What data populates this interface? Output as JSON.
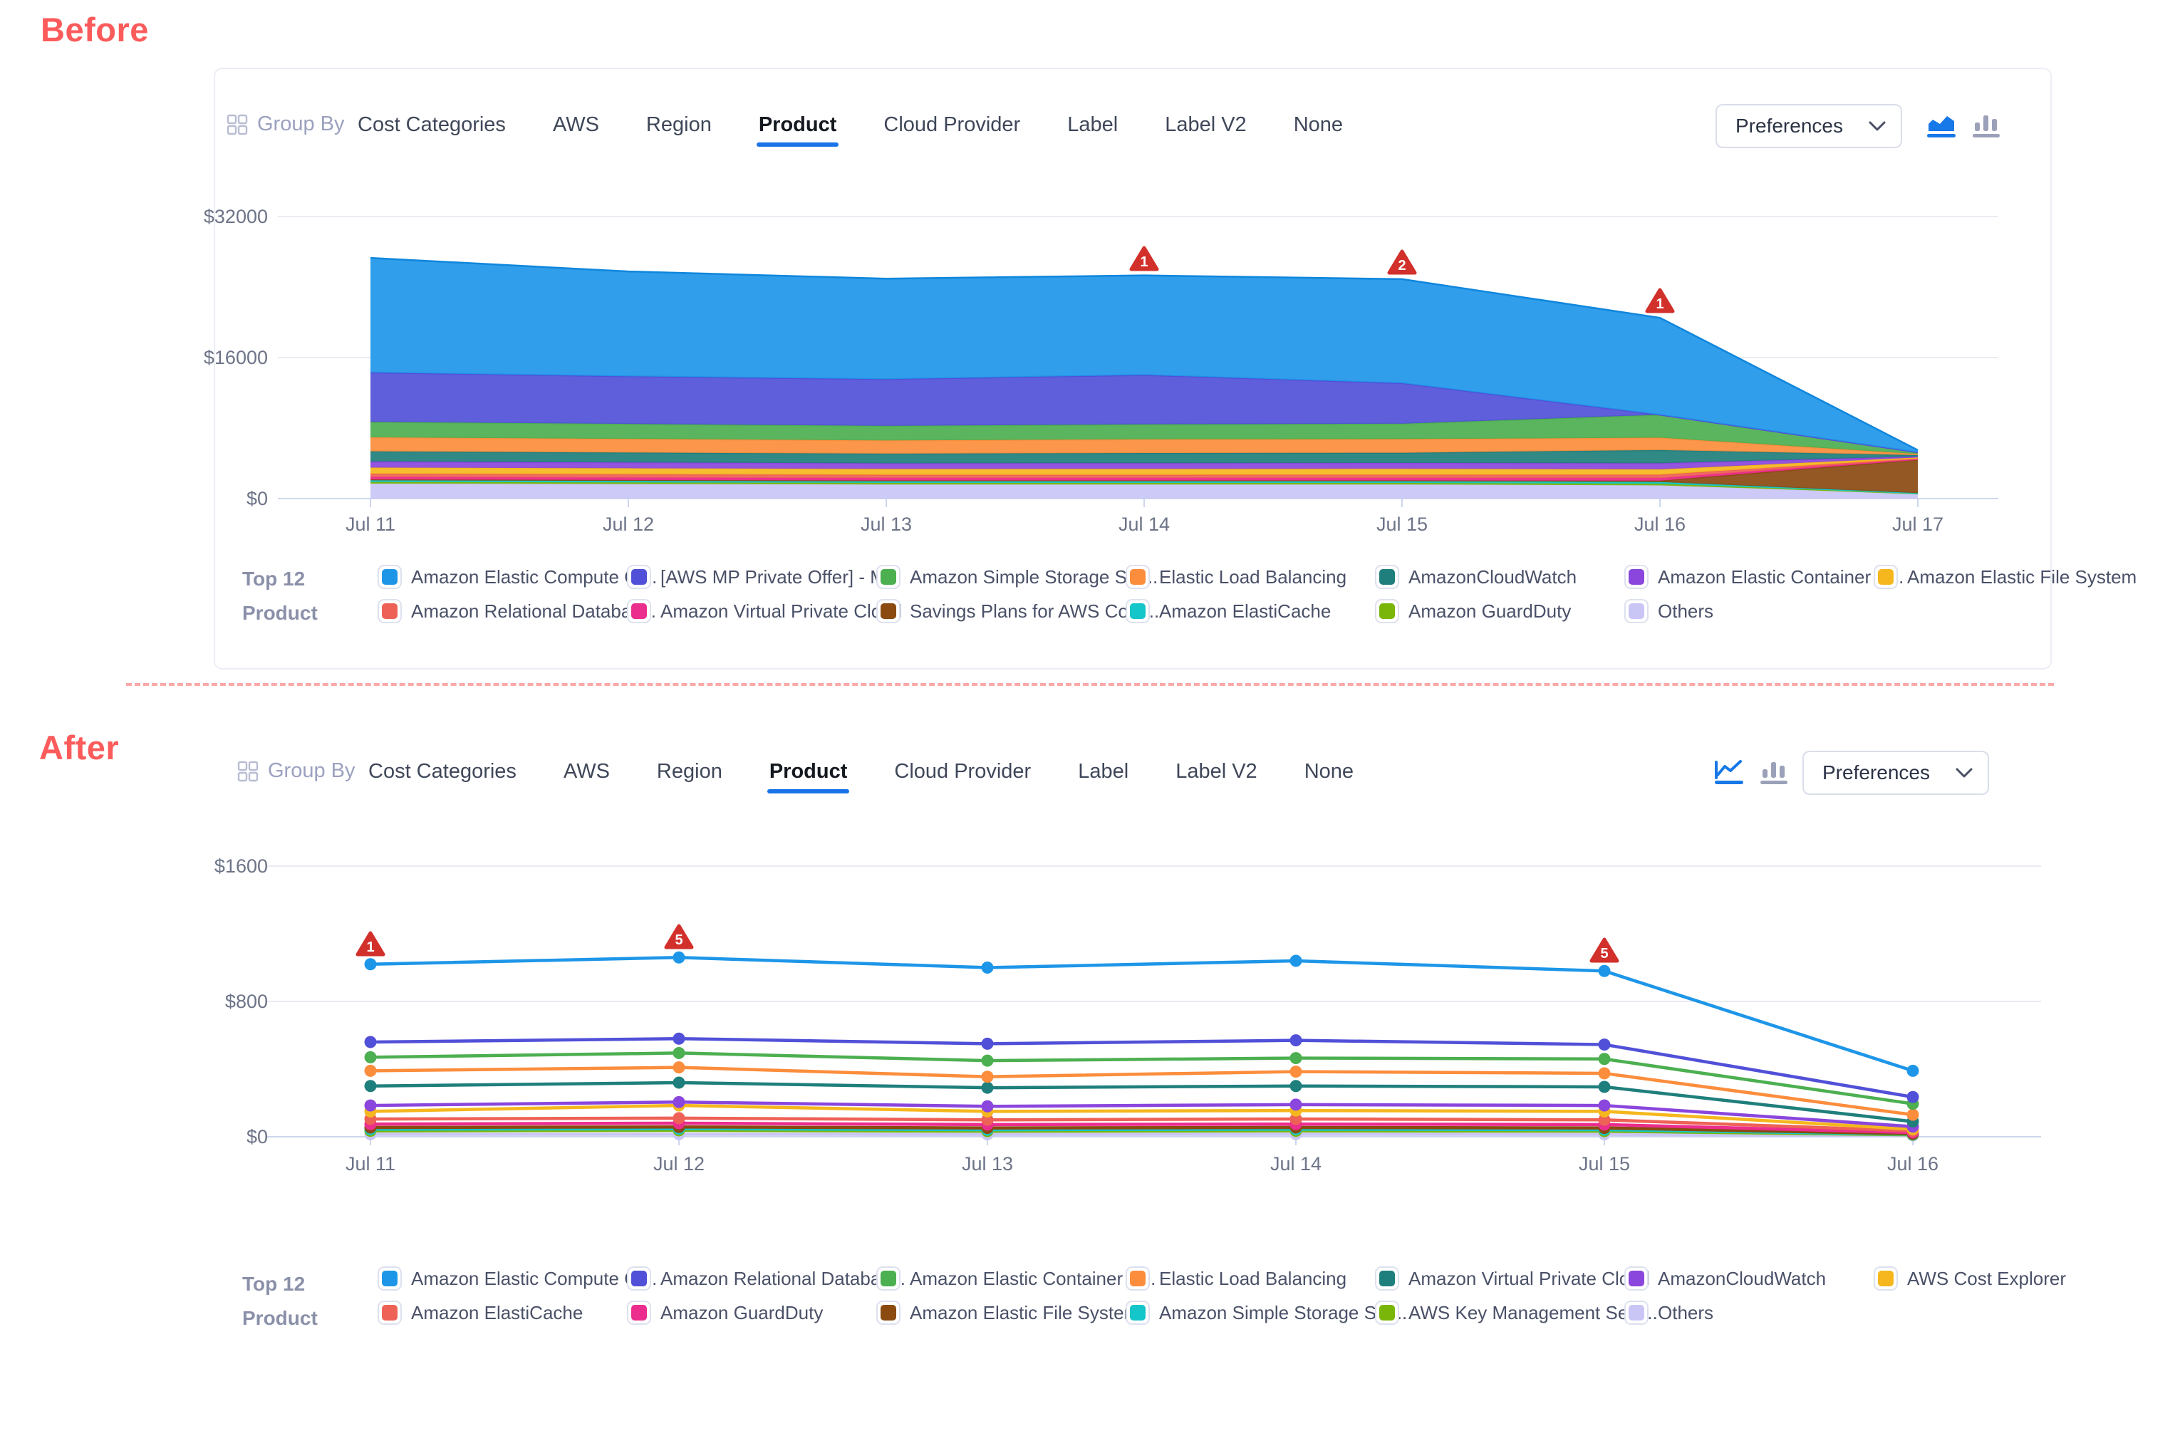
{
  "page": {
    "before_label": "Before",
    "after_label": "After"
  },
  "toolbar": {
    "group_by": "Group By",
    "tabs": [
      "Cost Categories",
      "AWS",
      "Region",
      "Product",
      "Cloud Provider",
      "Label",
      "Label V2",
      "None"
    ],
    "active_tab": "Product",
    "preferences": "Preferences"
  },
  "legend_title": {
    "line1": "Top 12",
    "line2": "Product"
  },
  "colors": {
    "accent_blue": "#1a73e8",
    "alert_red": "#d2302b",
    "divider_pink": "#f9a9a9",
    "section_label": "#fb5b5b",
    "icon_gray": "#9aa1b8",
    "icon_active_blue": "#1778e8"
  },
  "chart_data": [
    {
      "id": "before",
      "type": "area",
      "stacked": true,
      "x": [
        "Jul 11",
        "Jul 12",
        "Jul 13",
        "Jul 14",
        "Jul 15",
        "Jul 16",
        "Jul 17"
      ],
      "ylim": [
        0,
        32000
      ],
      "yticks": [
        {
          "value": 0,
          "label": "$0"
        },
        {
          "value": 16000,
          "label": "$16000"
        },
        {
          "value": 32000,
          "label": "$32000"
        }
      ],
      "grid": "horizontal",
      "legend_position": "bottom",
      "series": [
        {
          "name": "Others",
          "color": "#c9c6f6",
          "values": [
            1700,
            1650,
            1600,
            1600,
            1600,
            1500,
            550
          ]
        },
        {
          "name": "Amazon GuardDuty",
          "color": "#7ab60a",
          "values": [
            180,
            180,
            180,
            180,
            180,
            180,
            30
          ]
        },
        {
          "name": "Amazon ElastiCache",
          "color": "#14c5c9",
          "values": [
            230,
            225,
            220,
            220,
            220,
            200,
            40
          ]
        },
        {
          "name": "Savings Plans for AWS Com...",
          "color": "#8a4a10",
          "values": [
            60,
            60,
            60,
            60,
            60,
            150,
            3800
          ]
        },
        {
          "name": "Amazon Virtual Private Cloud",
          "color": "#eb2d8d",
          "values": [
            260,
            260,
            260,
            260,
            260,
            280,
            60
          ]
        },
        {
          "name": "Amazon Relational Databas...",
          "color": "#ee6156",
          "values": [
            390,
            385,
            380,
            380,
            385,
            400,
            80
          ]
        },
        {
          "name": "Amazon Elastic File System",
          "color": "#f5b71d",
          "values": [
            700,
            680,
            660,
            660,
            680,
            600,
            100
          ]
        },
        {
          "name": "Amazon Elastic Container S...",
          "color": "#8a46dd",
          "values": [
            680,
            660,
            640,
            660,
            660,
            700,
            120
          ]
        },
        {
          "name": "AmazonCloudWatch",
          "color": "#1f7f7c",
          "values": [
            1150,
            1120,
            1100,
            1150,
            1150,
            1500,
            150
          ]
        },
        {
          "name": "Elastic Load Balancing",
          "color": "#fb8d3c",
          "values": [
            1600,
            1550,
            1500,
            1550,
            1550,
            1400,
            120
          ]
        },
        {
          "name": "Amazon Simple Storage Ser...",
          "color": "#4caf50",
          "values": [
            1750,
            1700,
            1650,
            1700,
            1750,
            2600,
            200
          ]
        },
        {
          "name": "[AWS MP Private Offer] - M...",
          "color": "#5150d8",
          "values": [
            5600,
            5400,
            5300,
            5600,
            4600,
            0,
            0
          ]
        },
        {
          "name": "Amazon Elastic Compute Cl...",
          "color": "#1e96e8",
          "values": [
            13000,
            11900,
            11400,
            11300,
            11800,
            11000,
            250
          ],
          "edge": "#0f86dd"
        }
      ],
      "alerts": [
        {
          "x": "Jul 14",
          "count": "1"
        },
        {
          "x": "Jul 15",
          "count": "2"
        },
        {
          "x": "Jul 16",
          "count": "1"
        }
      ],
      "legend_rows": [
        [
          {
            "label": "Amazon Elastic Compute Cl...",
            "color": "#1e96e8"
          },
          {
            "label": "[AWS MP Private Offer] - M...",
            "color": "#5150d8"
          },
          {
            "label": "Amazon Simple Storage Ser...",
            "color": "#4caf50"
          },
          {
            "label": "Elastic Load Balancing",
            "color": "#fb8d3c"
          },
          {
            "label": "AmazonCloudWatch",
            "color": "#1f7f7c"
          },
          {
            "label": "Amazon Elastic Container S...",
            "color": "#8a46dd"
          },
          {
            "label": "Amazon Elastic File System",
            "color": "#f5b71d"
          }
        ],
        [
          {
            "label": "Amazon Relational Databas...",
            "color": "#ee6156"
          },
          {
            "label": "Amazon Virtual Private Cloud",
            "color": "#eb2d8d"
          },
          {
            "label": "Savings Plans for AWS Com...",
            "color": "#8a4a10"
          },
          {
            "label": "Amazon ElastiCache",
            "color": "#14c5c9"
          },
          {
            "label": "Amazon GuardDuty",
            "color": "#7ab60a"
          },
          {
            "label": "Others",
            "color": "#c9c6f6"
          }
        ]
      ]
    },
    {
      "id": "after",
      "type": "line",
      "stacked": false,
      "x": [
        "Jul 11",
        "Jul 12",
        "Jul 13",
        "Jul 14",
        "Jul 15",
        "Jul 16"
      ],
      "ylim": [
        0,
        1600
      ],
      "yticks": [
        {
          "value": 0,
          "label": "$0"
        },
        {
          "value": 800,
          "label": "$800"
        },
        {
          "value": 1600,
          "label": "$1600"
        }
      ],
      "grid": "horizontal",
      "legend_position": "bottom",
      "series": [
        {
          "name": "Others",
          "color": "#c9c6f6",
          "values": [
            15,
            15,
            14,
            15,
            14,
            8
          ]
        },
        {
          "name": "AWS Key Management Serv...",
          "color": "#7ab60a",
          "values": [
            35,
            38,
            33,
            35,
            33,
            12
          ]
        },
        {
          "name": "Amazon Simple Storage Ser...",
          "color": "#14c5c9",
          "values": [
            45,
            48,
            42,
            45,
            42,
            15
          ]
        },
        {
          "name": "Amazon Elastic File System",
          "color": "#8a4a10",
          "values": [
            55,
            58,
            52,
            55,
            52,
            18
          ]
        },
        {
          "name": "Amazon GuardDuty",
          "color": "#eb2d8d",
          "values": [
            75,
            80,
            72,
            75,
            72,
            25
          ]
        },
        {
          "name": "Amazon ElastiCache",
          "color": "#ee6156",
          "values": [
            105,
            110,
            100,
            105,
            100,
            35
          ]
        },
        {
          "name": "AWS Cost Explorer",
          "color": "#f5b71d",
          "values": [
            150,
            185,
            150,
            155,
            150,
            45
          ]
        },
        {
          "name": "AmazonCloudWatch",
          "color": "#8a46dd",
          "values": [
            185,
            205,
            180,
            190,
            185,
            60
          ]
        },
        {
          "name": "Amazon Virtual Private Cloud",
          "color": "#1f7f7c",
          "values": [
            300,
            320,
            290,
            300,
            295,
            90
          ]
        },
        {
          "name": "Elastic Load Balancing",
          "color": "#fb8d3c",
          "values": [
            390,
            410,
            355,
            385,
            375,
            130
          ]
        },
        {
          "name": "Amazon Elastic Container S...",
          "color": "#4caf50",
          "values": [
            470,
            495,
            450,
            465,
            460,
            195
          ]
        },
        {
          "name": "Amazon Relational Databas...",
          "color": "#5150d8",
          "values": [
            560,
            580,
            550,
            570,
            545,
            235
          ]
        },
        {
          "name": "Amazon Elastic Compute Cl...",
          "color": "#1e96e8",
          "values": [
            1020,
            1060,
            1000,
            1040,
            980,
            390
          ]
        }
      ],
      "alerts": [
        {
          "x": "Jul 11",
          "count": "1"
        },
        {
          "x": "Jul 12",
          "count": "5"
        },
        {
          "x": "Jul 15",
          "count": "5"
        }
      ],
      "legend_rows": [
        [
          {
            "label": "Amazon Elastic Compute Cl...",
            "color": "#1e96e8"
          },
          {
            "label": "Amazon Relational Databas...",
            "color": "#5150d8"
          },
          {
            "label": "Amazon Elastic Container S...",
            "color": "#4caf50"
          },
          {
            "label": "Elastic Load Balancing",
            "color": "#fb8d3c"
          },
          {
            "label": "Amazon Virtual Private Cloud",
            "color": "#1f7f7c"
          },
          {
            "label": "AmazonCloudWatch",
            "color": "#8a46dd"
          },
          {
            "label": "AWS Cost Explorer",
            "color": "#f5b71d"
          }
        ],
        [
          {
            "label": "Amazon ElastiCache",
            "color": "#ee6156"
          },
          {
            "label": "Amazon GuardDuty",
            "color": "#eb2d8d"
          },
          {
            "label": "Amazon Elastic File System",
            "color": "#8a4a10"
          },
          {
            "label": "Amazon Simple Storage Ser...",
            "color": "#14c5c9"
          },
          {
            "label": "AWS Key Management Serv...",
            "color": "#7ab60a"
          },
          {
            "label": "Others",
            "color": "#c9c6f6"
          }
        ]
      ]
    }
  ]
}
